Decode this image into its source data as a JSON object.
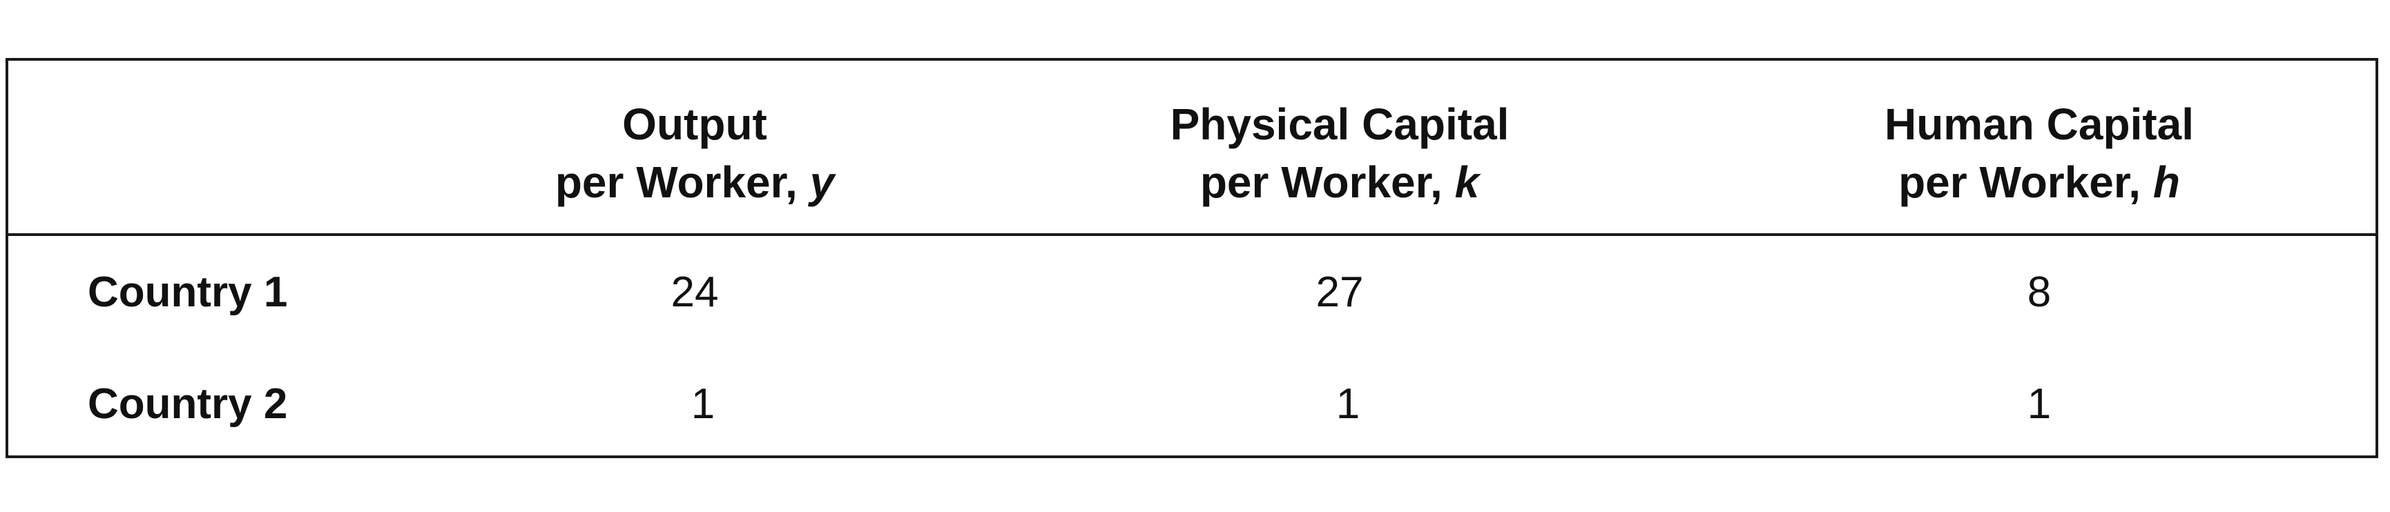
{
  "table": {
    "columns": [
      {
        "line1": "Output",
        "line2": "per Worker, ",
        "var": "y"
      },
      {
        "line1": "Physical Capital",
        "line2": "per Worker, ",
        "var": "k"
      },
      {
        "line1": "Human Capital",
        "line2": "per Worker, ",
        "var": "h"
      }
    ],
    "rows": [
      {
        "label": "Country 1",
        "values": [
          "24",
          "27",
          "8"
        ]
      },
      {
        "label": "Country 2",
        "values": [
          "1",
          "1",
          "1"
        ]
      }
    ]
  }
}
